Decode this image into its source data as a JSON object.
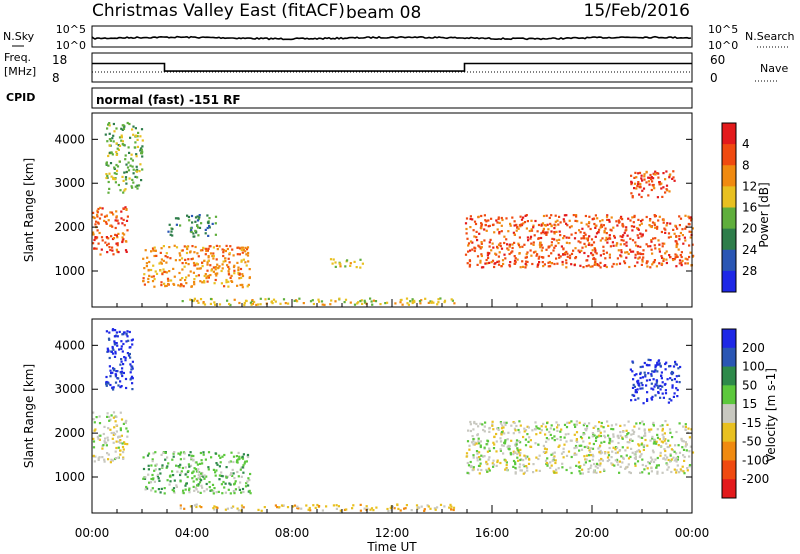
{
  "header": {
    "title": "Christmas Valley East (fitACF)",
    "beam": "beam 08",
    "date": "15/Feb/2016"
  },
  "nsky_panel": {
    "left_label": "N.Sky",
    "right_label": "N.Search",
    "ticks": [
      "10^5",
      "10^0"
    ]
  },
  "freq_panel": {
    "left_label_line1": "Freq.",
    "left_label_line2": "[MHz]",
    "left_ticks": [
      "18",
      "8"
    ],
    "right_label": "Nave",
    "right_ticks": [
      "60",
      "0"
    ],
    "freq_steps": [
      [
        0,
        15.5
      ],
      [
        2.9,
        11.3
      ],
      [
        14.9,
        15.5
      ],
      [
        24,
        15.5
      ]
    ],
    "nave_level": 13
  },
  "cpid_panel": {
    "label": "CPID",
    "mode": "normal (fast) -151 RF"
  },
  "time_axis": {
    "xlabel": "Time UT",
    "tick_labels": [
      "00:00",
      "04:00",
      "08:00",
      "12:00",
      "16:00",
      "20:00",
      "00:00"
    ],
    "range_hours": [
      0,
      24
    ]
  },
  "chart_data": [
    {
      "type": "heatmap",
      "quantity": "power",
      "ylabel": "Slant Range [km]",
      "ylim": [
        180,
        4600
      ],
      "yticks": [
        1000,
        2000,
        3000,
        4000
      ],
      "colorbar_label": "Power [dB]",
      "colorbar_ticks": [
        4,
        8,
        12,
        16,
        20,
        24,
        28
      ],
      "colors": [
        "#1e28e6",
        "#2a56b4",
        "#2e7d4a",
        "#5fae3c",
        "#e8c020",
        "#f08a10",
        "#f04a10",
        "#e31a1c"
      ],
      "regions": [
        {
          "t": [
            0.0,
            1.4
          ],
          "r": [
            1350,
            2500
          ],
          "level": 6
        },
        {
          "t": [
            0.5,
            2.0
          ],
          "r": [
            2800,
            4400
          ],
          "level": 3
        },
        {
          "t": [
            2.0,
            6.3
          ],
          "r": [
            650,
            1600
          ],
          "level": 5
        },
        {
          "t": [
            3.0,
            5.0
          ],
          "r": [
            1800,
            2300
          ],
          "level": 2
        },
        {
          "t": [
            9.5,
            10.8
          ],
          "r": [
            1100,
            1300
          ],
          "level": 4
        },
        {
          "t": [
            3.5,
            14.5
          ],
          "r": [
            250,
            400
          ],
          "level": 4
        },
        {
          "t": [
            14.9,
            24.0
          ],
          "r": [
            1100,
            2300
          ],
          "level": 6
        },
        {
          "t": [
            21.5,
            23.3
          ],
          "r": [
            2700,
            3300
          ],
          "level": 6
        }
      ]
    },
    {
      "type": "heatmap",
      "quantity": "velocity",
      "ylabel": "Slant Range [km]",
      "ylim": [
        180,
        4600
      ],
      "yticks": [
        1000,
        2000,
        3000,
        4000
      ],
      "colorbar_label": "Velocity [m s-1]",
      "colorbar_ticks": [
        200,
        100,
        50,
        15,
        -15,
        -50,
        -100,
        -200
      ],
      "colors": [
        "#1e28e6",
        "#2a56b4",
        "#2e8a4a",
        "#5cc83c",
        "#c8c8c0",
        "#e8c020",
        "#f08a10",
        "#f04a10",
        "#e31a1c"
      ],
      "regions": [
        {
          "t": [
            0.0,
            1.4
          ],
          "r": [
            1350,
            2500
          ],
          "level": 4
        },
        {
          "t": [
            0.5,
            1.6
          ],
          "r": [
            3000,
            4400
          ],
          "level": 0
        },
        {
          "t": [
            2.0,
            6.3
          ],
          "r": [
            650,
            1600
          ],
          "level": 3
        },
        {
          "t": [
            3.5,
            14.5
          ],
          "r": [
            250,
            400
          ],
          "level": 5
        },
        {
          "t": [
            14.9,
            24.0
          ],
          "r": [
            1100,
            2300
          ],
          "level": 4
        },
        {
          "t": [
            21.5,
            23.5
          ],
          "r": [
            2700,
            3700
          ],
          "level": 0
        }
      ]
    }
  ]
}
